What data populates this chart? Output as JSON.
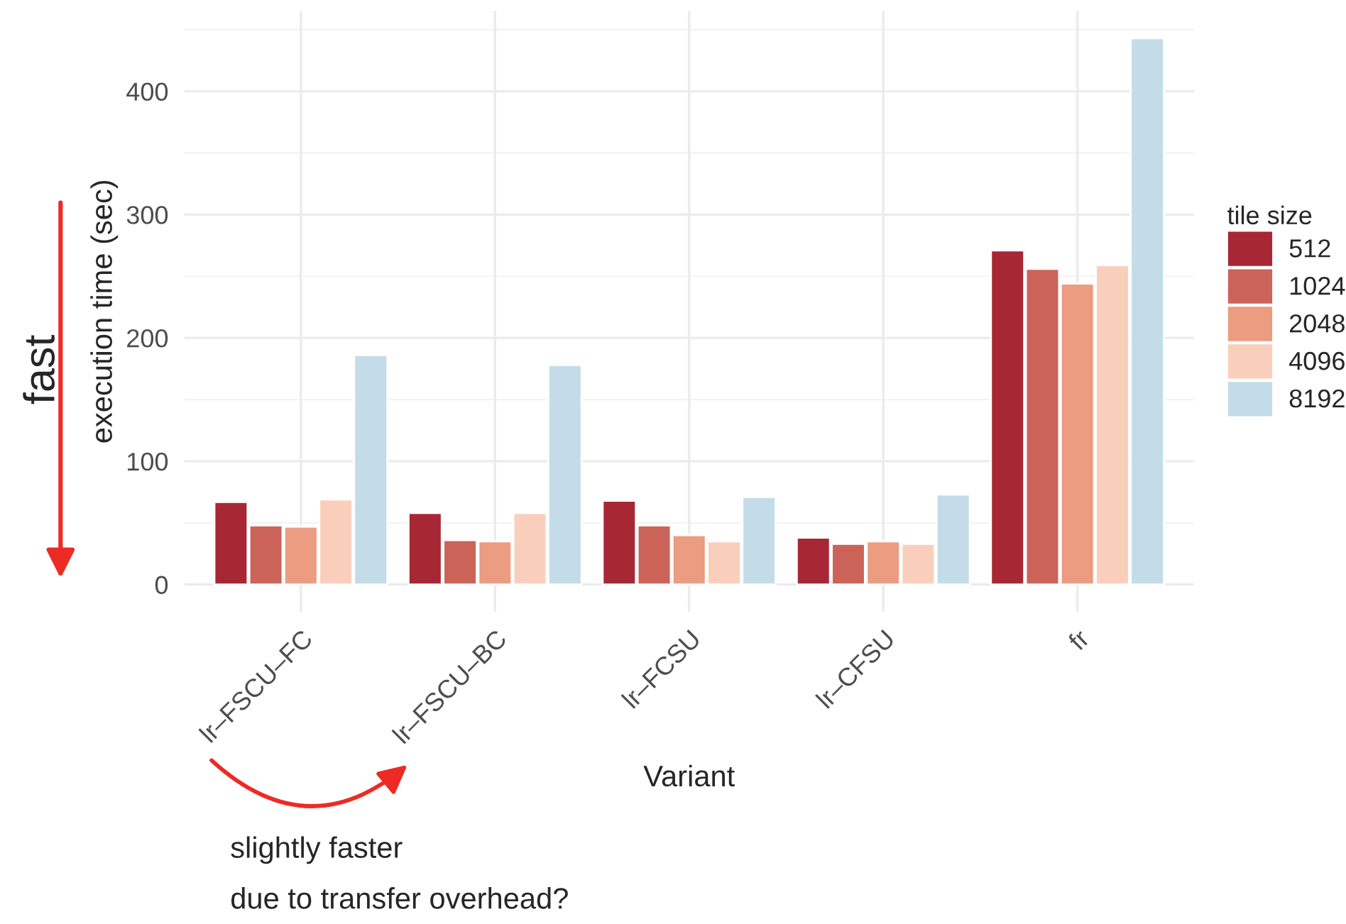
{
  "chart_data": {
    "type": "bar",
    "xlabel": "Variant",
    "ylabel": "execution time (sec)",
    "legend_title": "tile size",
    "categories": [
      "lr–FSCU–FC",
      "lr–FSCU–BC",
      "lr–FCSU",
      "lr–CFSU",
      "fr"
    ],
    "series": [
      {
        "name": "512",
        "color": "#a72834",
        "values": [
          67,
          58,
          68,
          38,
          271
        ]
      },
      {
        "name": "1024",
        "color": "#cc6358",
        "values": [
          48,
          36,
          48,
          33,
          256
        ]
      },
      {
        "name": "2048",
        "color": "#ec9c80",
        "values": [
          47,
          35,
          40,
          35,
          244
        ]
      },
      {
        "name": "4096",
        "color": "#f9cfbc",
        "values": [
          69,
          58,
          35,
          33,
          259
        ]
      },
      {
        "name": "8192",
        "color": "#c4dce8",
        "values": [
          186,
          178,
          71,
          73,
          443
        ]
      }
    ],
    "ylim": [
      -22,
      465
    ],
    "yticks": [
      0,
      {
        "value": 50,
        "label": null
      },
      100,
      {
        "value": 150,
        "label": null
      },
      200,
      {
        "value": 250,
        "label": null
      },
      300,
      {
        "value": 350,
        "label": null
      },
      400,
      {
        "value": 450,
        "label": null
      }
    ],
    "grid": true,
    "legend": "right",
    "annotations": [
      "fast",
      "slightly faster",
      "due to transfer overhead?"
    ]
  }
}
